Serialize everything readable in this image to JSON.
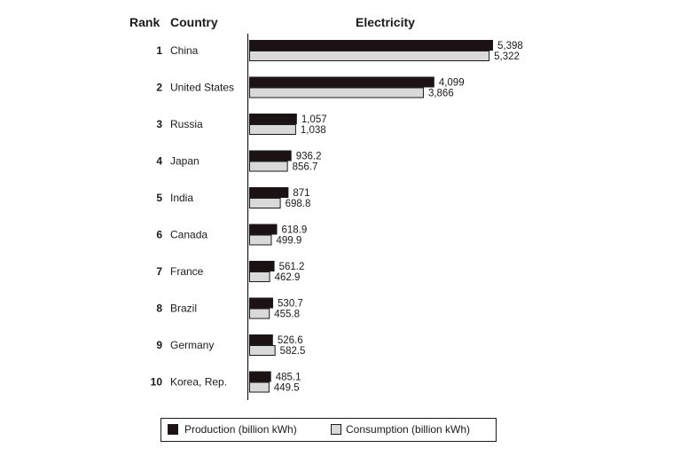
{
  "header": {
    "rank": "Rank",
    "country": "Country",
    "metric": "Electricity"
  },
  "chart_data": {
    "type": "bar",
    "orientation": "horizontal",
    "title": "Electricity",
    "xlabel": "",
    "ylabel": "",
    "grid": false,
    "legend_position": "bottom",
    "xlim": [
      0,
      5500
    ],
    "ranks": [
      "1",
      "2",
      "3",
      "4",
      "5",
      "6",
      "7",
      "8",
      "9",
      "10"
    ],
    "categories": [
      "China",
      "United States",
      "Russia",
      "Japan",
      "India",
      "Canada",
      "France",
      "Brazil",
      "Germany",
      "Korea, Rep."
    ],
    "series": [
      {
        "name": "Production (billion kWh)",
        "color": "#1c1214",
        "values": [
          5398,
          4099,
          1057,
          936.2,
          871,
          618.9,
          561.2,
          530.7,
          526.6,
          485.1
        ],
        "labels": [
          "5,398",
          "4,099",
          "1,057",
          "936.2",
          "871",
          "618.9",
          "561.2",
          "530.7",
          "526.6",
          "485.1"
        ]
      },
      {
        "name": "Consumption (billion kWh)",
        "color": "#d9d9d9",
        "values": [
          5322,
          3866,
          1038,
          856.7,
          698.8,
          499.9,
          462.9,
          455.8,
          582.5,
          449.5
        ],
        "labels": [
          "5,322",
          "3,866",
          "1,038",
          "856.7",
          "698.8",
          "499.9",
          "462.9",
          "455.8",
          "582.5",
          "449.5"
        ]
      }
    ]
  }
}
